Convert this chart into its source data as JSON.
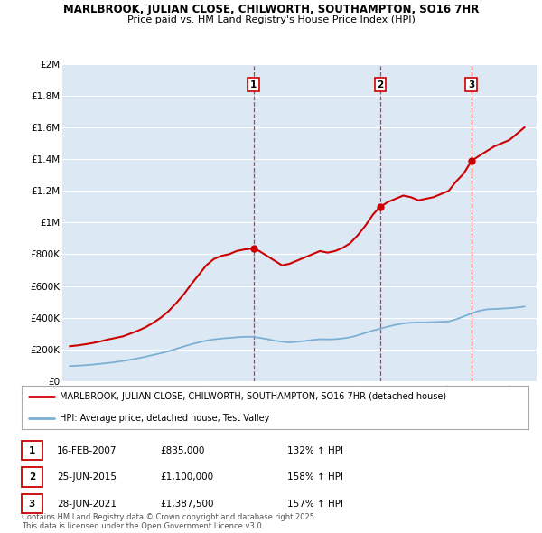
{
  "title1": "MARLBROOK, JULIAN CLOSE, CHILWORTH, SOUTHAMPTON, SO16 7HR",
  "title2": "Price paid vs. HM Land Registry's House Price Index (HPI)",
  "background_color": "#ffffff",
  "plot_background": "#dce9f5",
  "grid_color": "#ffffff",
  "red_line_color": "#cc0000",
  "blue_line_color": "#7bafd4",
  "yticks": [
    0,
    200000,
    400000,
    600000,
    800000,
    1000000,
    1200000,
    1400000,
    1600000,
    1800000,
    2000000
  ],
  "ytick_labels": [
    "£0",
    "£200K",
    "£400K",
    "£600K",
    "£800K",
    "£1M",
    "£1.2M",
    "£1.4M",
    "£1.6M",
    "£1.8M",
    "£2M"
  ],
  "xlim_start": 1994.5,
  "xlim_end": 2025.8,
  "ylim_min": 0,
  "ylim_max": 2000000,
  "sale_dates": [
    2007.12,
    2015.48,
    2021.49
  ],
  "sale_prices": [
    835000,
    1100000,
    1387500
  ],
  "sale_labels": [
    "1",
    "2",
    "3"
  ],
  "sale_annotations": [
    {
      "label": "1",
      "date": "16-FEB-2007",
      "price": "£835,000",
      "hpi": "132% ↑ HPI"
    },
    {
      "label": "2",
      "date": "25-JUN-2015",
      "price": "£1,100,000",
      "hpi": "158% ↑ HPI"
    },
    {
      "label": "3",
      "date": "28-JUN-2021",
      "price": "£1,387,500",
      "hpi": "157% ↑ HPI"
    }
  ],
  "legend_line1": "MARLBROOK, JULIAN CLOSE, CHILWORTH, SOUTHAMPTON, SO16 7HR (detached house)",
  "legend_line2": "HPI: Average price, detached house, Test Valley",
  "footer": "Contains HM Land Registry data © Crown copyright and database right 2025.\nThis data is licensed under the Open Government Licence v3.0.",
  "red_line_x": [
    1995.0,
    1995.5,
    1996.0,
    1996.5,
    1997.0,
    1997.5,
    1998.0,
    1998.5,
    1999.0,
    1999.5,
    2000.0,
    2000.5,
    2001.0,
    2001.5,
    2002.0,
    2002.5,
    2003.0,
    2003.5,
    2004.0,
    2004.5,
    2005.0,
    2005.5,
    2006.0,
    2006.5,
    2007.0,
    2007.12,
    2007.5,
    2008.0,
    2008.5,
    2009.0,
    2009.5,
    2010.0,
    2010.5,
    2011.0,
    2011.5,
    2012.0,
    2012.5,
    2013.0,
    2013.5,
    2014.0,
    2014.5,
    2015.0,
    2015.48,
    2015.5,
    2016.0,
    2016.5,
    2017.0,
    2017.5,
    2018.0,
    2018.5,
    2019.0,
    2019.5,
    2020.0,
    2020.5,
    2021.0,
    2021.49,
    2022.0,
    2022.5,
    2023.0,
    2023.5,
    2024.0,
    2024.5,
    2025.0
  ],
  "red_line_y": [
    220000,
    225000,
    232000,
    240000,
    250000,
    262000,
    272000,
    282000,
    300000,
    318000,
    340000,
    368000,
    400000,
    440000,
    490000,
    545000,
    610000,
    670000,
    730000,
    770000,
    790000,
    800000,
    820000,
    830000,
    835000,
    835000,
    820000,
    790000,
    760000,
    730000,
    740000,
    760000,
    780000,
    800000,
    820000,
    810000,
    820000,
    840000,
    870000,
    920000,
    980000,
    1050000,
    1100000,
    1100000,
    1130000,
    1150000,
    1170000,
    1160000,
    1140000,
    1150000,
    1160000,
    1180000,
    1200000,
    1260000,
    1310000,
    1387500,
    1420000,
    1450000,
    1480000,
    1500000,
    1520000,
    1560000,
    1600000
  ],
  "blue_line_x": [
    1995.0,
    1995.5,
    1996.0,
    1996.5,
    1997.0,
    1997.5,
    1998.0,
    1998.5,
    1999.0,
    1999.5,
    2000.0,
    2000.5,
    2001.0,
    2001.5,
    2002.0,
    2002.5,
    2003.0,
    2003.5,
    2004.0,
    2004.5,
    2005.0,
    2005.5,
    2006.0,
    2006.5,
    2007.0,
    2007.5,
    2008.0,
    2008.5,
    2009.0,
    2009.5,
    2010.0,
    2010.5,
    2011.0,
    2011.5,
    2012.0,
    2012.5,
    2013.0,
    2013.5,
    2014.0,
    2014.5,
    2015.0,
    2015.5,
    2016.0,
    2016.5,
    2017.0,
    2017.5,
    2018.0,
    2018.5,
    2019.0,
    2019.5,
    2020.0,
    2020.5,
    2021.0,
    2021.5,
    2022.0,
    2022.5,
    2023.0,
    2023.5,
    2024.0,
    2024.5,
    2025.0
  ],
  "blue_line_y": [
    95000,
    97000,
    100000,
    104000,
    109000,
    114000,
    120000,
    127000,
    135000,
    144000,
    154000,
    165000,
    176000,
    188000,
    203000,
    218000,
    232000,
    244000,
    255000,
    263000,
    268000,
    272000,
    276000,
    279000,
    280000,
    273000,
    265000,
    255000,
    248000,
    244000,
    248000,
    253000,
    259000,
    264000,
    263000,
    264000,
    269000,
    276000,
    289000,
    304000,
    319000,
    331000,
    344000,
    355000,
    364000,
    368000,
    370000,
    370000,
    372000,
    374000,
    376000,
    390000,
    408000,
    427000,
    443000,
    452000,
    455000,
    457000,
    460000,
    464000,
    470000
  ]
}
